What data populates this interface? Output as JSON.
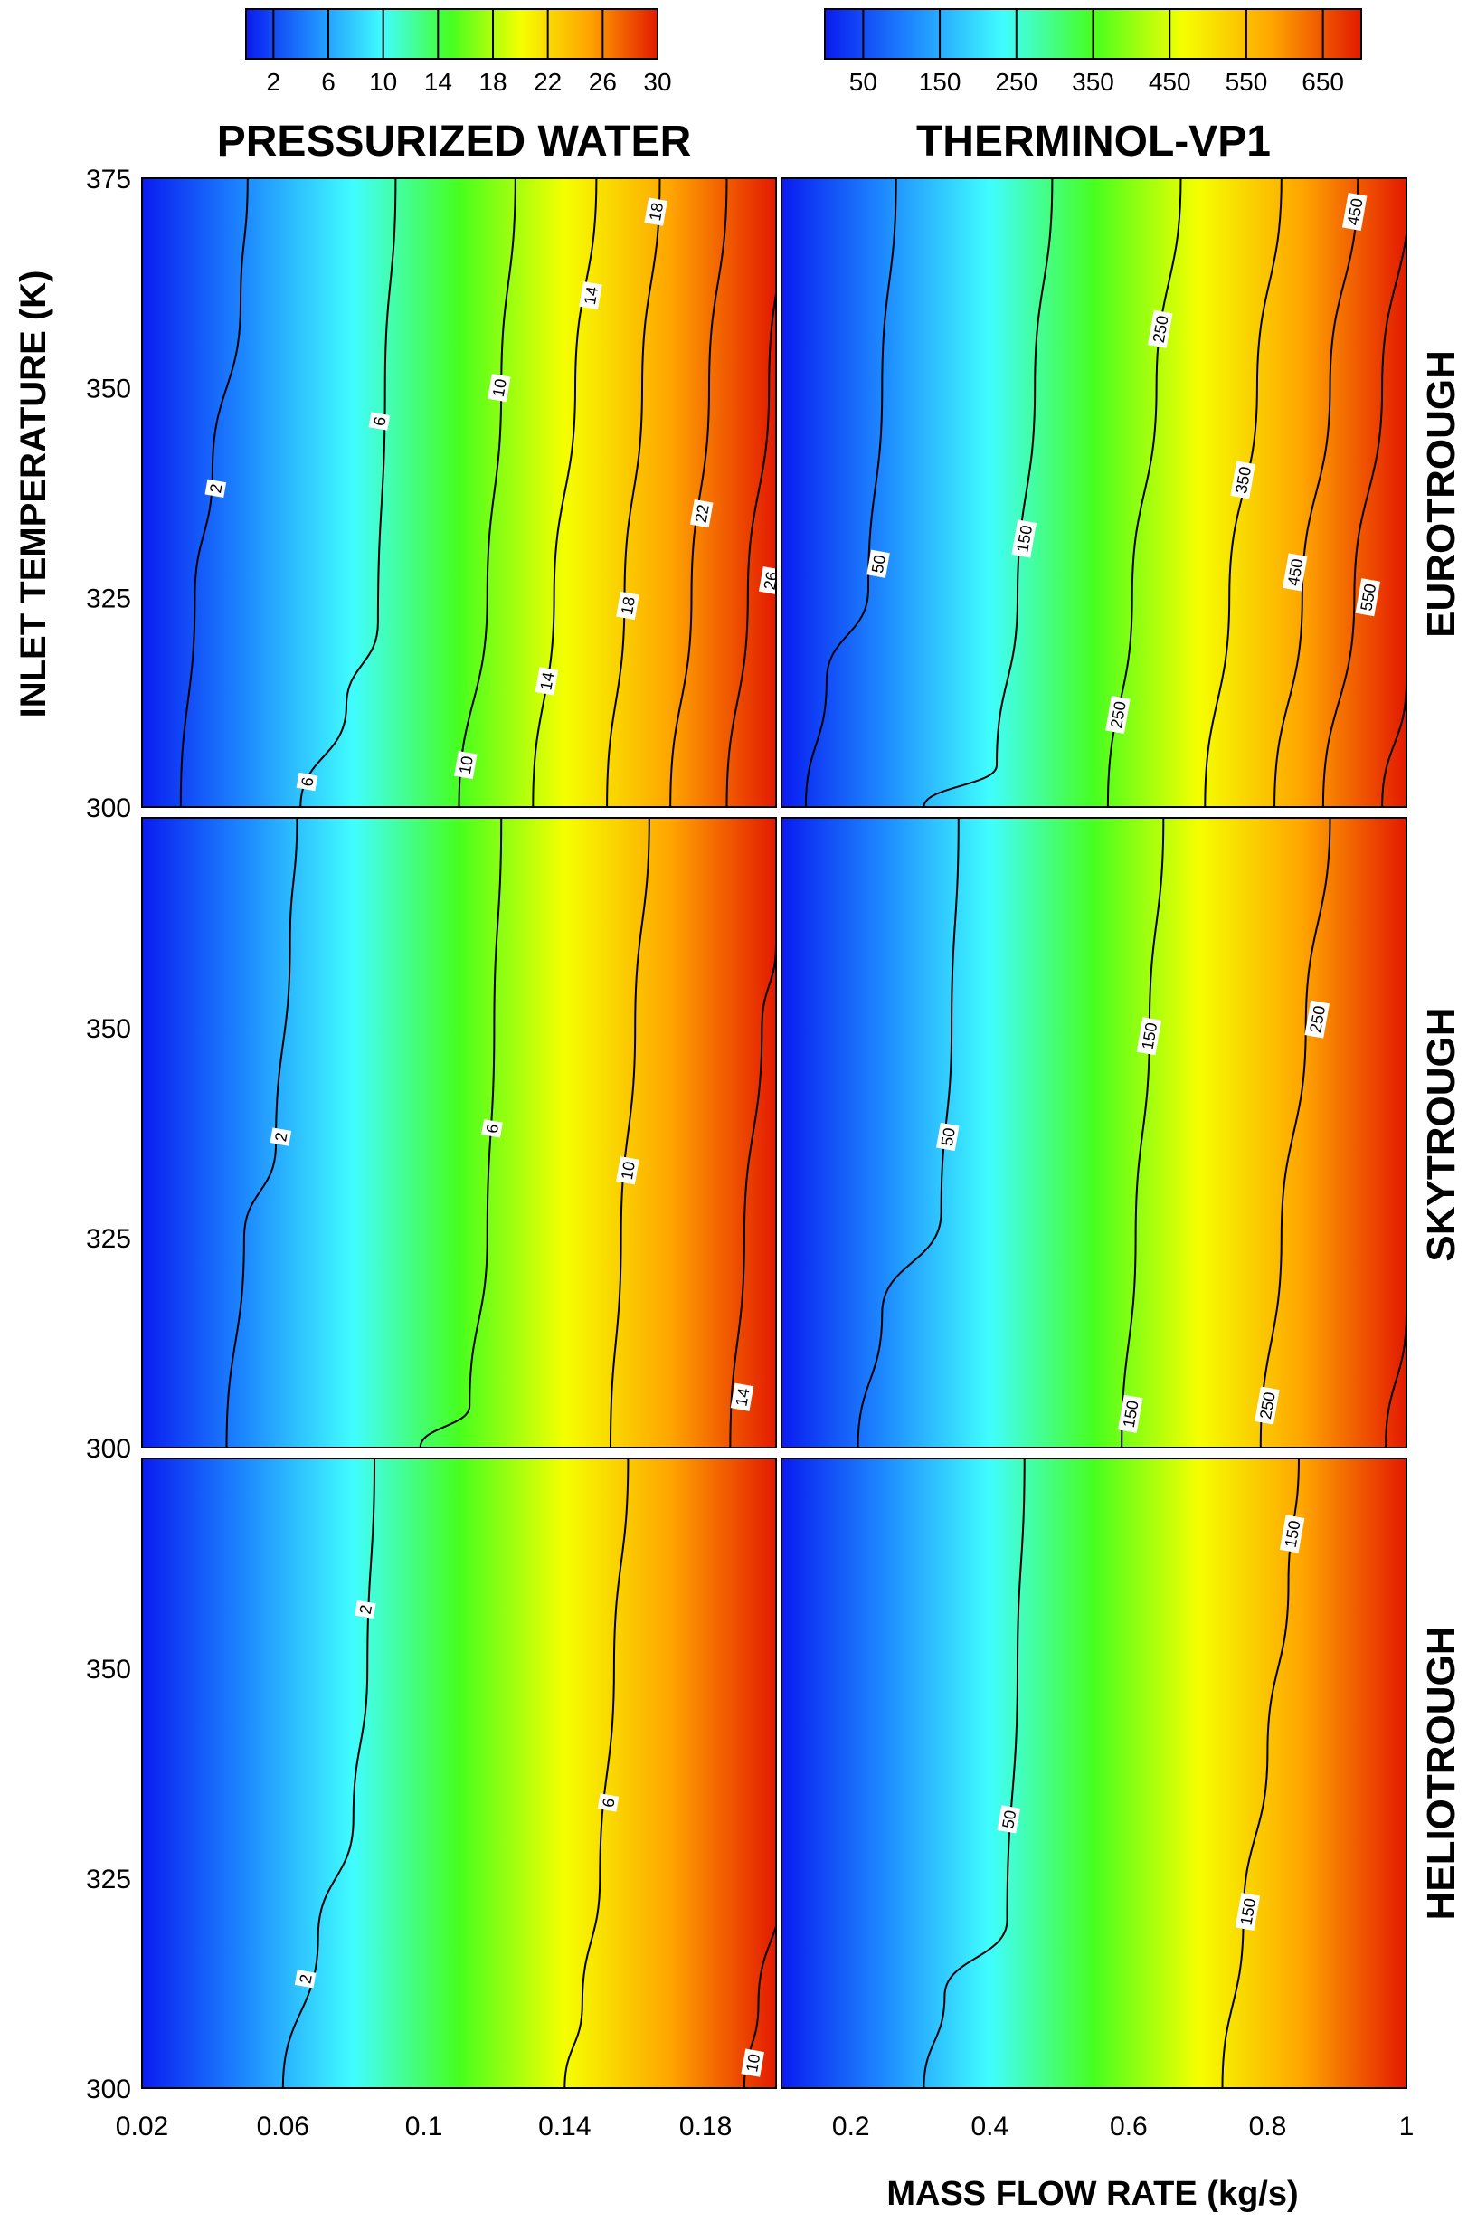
{
  "colors": {
    "colormap": [
      "#0a1cf0",
      "#1e8cff",
      "#40fdff",
      "#47ff1e",
      "#f5ff00",
      "#ffa500",
      "#e31a00"
    ],
    "contour": "#000000",
    "axis": "#000000"
  },
  "chart_data": {
    "type": "heatmap",
    "columns": [
      {
        "title": "PRESSURIZED WATER",
        "xlim": [
          0.02,
          0.2
        ],
        "xticks": [
          0.02,
          0.06,
          0.1,
          0.14,
          0.18
        ],
        "xtick_labels": [
          "0.02",
          "0.06",
          "0.1",
          "0.14",
          "0.18"
        ],
        "colorbar": {
          "range": [
            0,
            30
          ],
          "ticks": [
            2,
            6,
            10,
            14,
            18,
            22,
            26,
            30
          ],
          "labels": [
            "2",
            "6",
            "10",
            "14",
            "18",
            "22",
            "26",
            "30"
          ]
        }
      },
      {
        "title": "THERMINOL-VP1",
        "xlim": [
          0.1,
          1.0
        ],
        "xticks": [
          0.2,
          0.4,
          0.6,
          0.8,
          1.0
        ],
        "xtick_labels": [
          "0.2",
          "0.4",
          "0.6",
          "0.8",
          "1"
        ],
        "colorbar": {
          "range": [
            0,
            700
          ],
          "ticks": [
            50,
            150,
            250,
            350,
            450,
            550,
            650
          ],
          "labels": [
            "50",
            "150",
            "250",
            "350",
            "450",
            "550",
            "650"
          ]
        }
      }
    ],
    "rows": [
      "EUROTROUGH",
      "SKYTROUGH",
      "HELIOTROUGH"
    ],
    "ylabel": "INLET TEMPERATURE (K)",
    "xlabel": "MASS FLOW RATE (kg/s)",
    "ylim": [
      300,
      375
    ],
    "yticks": [
      300,
      325,
      350,
      375
    ],
    "ytick_labels": [
      "300",
      "325",
      "350",
      "375"
    ],
    "panels": [
      {
        "row": "EUROTROUGH",
        "fluid": "PRESSURIZED WATER",
        "contours": [
          {
            "level": "2",
            "points": [
              [
                0.031,
                300
              ],
              [
                0.035,
                325
              ],
              [
                0.04,
                340
              ],
              [
                0.048,
                360
              ],
              [
                0.05,
                375
              ]
            ],
            "label_at": [
              0.041,
              338
            ]
          },
          {
            "level": "6",
            "points": [
              [
                0.065,
                300
              ],
              [
                0.078,
                312
              ],
              [
                0.087,
                322
              ],
              [
                0.089,
                350
              ],
              [
                0.092,
                375
              ]
            ],
            "label_at": [
              0.067,
              303
            ]
          },
          {
            "level": "6",
            "points": [],
            "label_at": [
              0.0875,
              346
            ]
          },
          {
            "level": "10",
            "points": [
              [
                0.11,
                300
              ],
              [
                0.118,
                325
              ],
              [
                0.122,
                350
              ],
              [
                0.126,
                375
              ]
            ],
            "label_at": [
              0.112,
              305
            ]
          },
          {
            "level": "10",
            "points": [],
            "label_at": [
              0.1215,
              350
            ]
          },
          {
            "level": "14",
            "points": [
              [
                0.131,
                300
              ],
              [
                0.137,
                325
              ],
              [
                0.143,
                350
              ],
              [
                0.149,
                375
              ]
            ],
            "label_at": [
              0.135,
              315
            ]
          },
          {
            "level": "14",
            "points": [],
            "label_at": [
              0.1475,
              361
            ]
          },
          {
            "level": "18",
            "points": [
              [
                0.152,
                300
              ],
              [
                0.157,
                325
              ],
              [
                0.162,
                350
              ],
              [
                0.167,
                375
              ]
            ],
            "label_at": [
              0.158,
              324
            ]
          },
          {
            "level": "18",
            "points": [],
            "label_at": [
              0.166,
              371
            ]
          },
          {
            "level": "22",
            "points": [
              [
                0.17,
                300
              ],
              [
                0.176,
                325
              ],
              [
                0.181,
                350
              ],
              [
                0.186,
                375
              ]
            ],
            "label_at": [
              0.179,
              335
            ]
          },
          {
            "level": "26",
            "points": [
              [
                0.186,
                300
              ],
              [
                0.192,
                325
              ],
              [
                0.198,
                350
              ],
              [
                0.203,
                375
              ]
            ],
            "label_at": [
              0.1985,
              327
            ]
          }
        ]
      },
      {
        "row": "EUROTROUGH",
        "fluid": "THERMINOL-VP1",
        "contours": [
          {
            "level": "50",
            "points": [
              [
                0.135,
                300
              ],
              [
                0.165,
                315
              ],
              [
                0.225,
                326
              ],
              [
                0.245,
                350
              ],
              [
                0.265,
                375
              ]
            ],
            "label_at": [
              0.24,
              329
            ]
          },
          {
            "level": "150",
            "points": [
              [
                0.305,
                300
              ],
              [
                0.41,
                305
              ],
              [
                0.44,
                325
              ],
              [
                0.465,
                350
              ],
              [
                0.49,
                375
              ]
            ],
            "label_at": [
              0.45,
              332
            ]
          },
          {
            "level": "250",
            "points": [
              [
                0.57,
                300
              ],
              [
                0.605,
                325
              ],
              [
                0.64,
                350
              ],
              [
                0.675,
                375
              ]
            ],
            "label_at": [
              0.585,
              311
            ]
          },
          {
            "level": "250",
            "points": [],
            "label_at": [
              0.646,
              357
            ]
          },
          {
            "level": "350",
            "points": [
              [
                0.71,
                300
              ],
              [
                0.745,
                325
              ],
              [
                0.785,
                350
              ],
              [
                0.82,
                375
              ]
            ],
            "label_at": [
              0.765,
              339
            ]
          },
          {
            "level": "450",
            "points": [
              [
                0.81,
                300
              ],
              [
                0.85,
                325
              ],
              [
                0.89,
                350
              ],
              [
                0.93,
                375
              ]
            ],
            "label_at": [
              0.84,
              328
            ]
          },
          {
            "level": "450",
            "points": [],
            "label_at": [
              0.926,
              371
            ]
          },
          {
            "level": "550",
            "points": [
              [
                0.88,
                300
              ],
              [
                0.925,
                325
              ],
              [
                0.965,
                350
              ],
              [
                1.005,
                375
              ]
            ],
            "label_at": [
              0.945,
              325
            ]
          },
          {
            "level": "650",
            "points": [
              [
                0.965,
                300
              ],
              [
                1.0,
                315
              ]
            ],
            "label_at": null
          }
        ]
      },
      {
        "row": "SKYTROUGH",
        "fluid": "PRESSURIZED WATER",
        "contours": [
          {
            "level": "2",
            "points": [
              [
                0.044,
                300
              ],
              [
                0.049,
                325
              ],
              [
                0.058,
                336
              ],
              [
                0.062,
                360
              ],
              [
                0.064,
                375
              ]
            ],
            "label_at": [
              0.0595,
              337
            ]
          },
          {
            "level": "6",
            "points": [
              [
                0.099,
                300
              ],
              [
                0.113,
                305
              ],
              [
                0.118,
                325
              ],
              [
                0.12,
                350
              ],
              [
                0.122,
                375
              ]
            ],
            "label_at": [
              0.1195,
              338
            ]
          },
          {
            "level": "10",
            "points": [
              [
                0.153,
                300
              ],
              [
                0.156,
                325
              ],
              [
                0.16,
                350
              ],
              [
                0.164,
                375
              ]
            ],
            "label_at": [
              0.158,
              333
            ]
          },
          {
            "level": "14",
            "points": [
              [
                0.187,
                300
              ],
              [
                0.191,
                325
              ],
              [
                0.196,
                350
              ],
              [
                0.2,
                360
              ]
            ],
            "label_at": [
              0.1905,
              306
            ]
          }
        ]
      },
      {
        "row": "SKYTROUGH",
        "fluid": "THERMINOL-VP1",
        "contours": [
          {
            "level": "50",
            "points": [
              [
                0.21,
                300
              ],
              [
                0.245,
                316
              ],
              [
                0.33,
                328
              ],
              [
                0.345,
                350
              ],
              [
                0.355,
                375
              ]
            ],
            "label_at": [
              0.34,
              337
            ]
          },
          {
            "level": "150",
            "points": [
              [
                0.59,
                300
              ],
              [
                0.61,
                325
              ],
              [
                0.63,
                350
              ],
              [
                0.65,
                375
              ]
            ],
            "label_at": [
              0.603,
              304
            ]
          },
          {
            "level": "150",
            "points": [],
            "label_at": [
              0.63,
              349
            ]
          },
          {
            "level": "250",
            "points": [
              [
                0.79,
                300
              ],
              [
                0.82,
                325
              ],
              [
                0.855,
                350
              ],
              [
                0.89,
                375
              ]
            ],
            "label_at": [
              0.8,
              305
            ]
          },
          {
            "level": "250",
            "points": [],
            "label_at": [
              0.872,
              351
            ]
          },
          {
            "level": "350",
            "points": [
              [
                0.97,
                300
              ],
              [
                1.0,
                316
              ]
            ],
            "label_at": null
          }
        ]
      },
      {
        "row": "HELIOTROUGH",
        "fluid": "PRESSURIZED WATER",
        "contours": [
          {
            "level": "2",
            "points": [
              [
                0.06,
                300
              ],
              [
                0.07,
                318
              ],
              [
                0.08,
                332
              ],
              [
                0.084,
                350
              ],
              [
                0.086,
                375
              ]
            ],
            "label_at": [
              0.0665,
              313
            ]
          },
          {
            "level": "2",
            "points": [],
            "label_at": [
              0.0835,
              357
            ]
          },
          {
            "level": "6",
            "points": [
              [
                0.14,
                300
              ],
              [
                0.145,
                310
              ],
              [
                0.15,
                325
              ],
              [
                0.154,
                350
              ],
              [
                0.158,
                375
              ]
            ],
            "label_at": [
              0.1525,
              334
            ]
          },
          {
            "level": "10",
            "points": [
              [
                0.191,
                300
              ],
              [
                0.195,
                310
              ],
              [
                0.202,
                325
              ]
            ],
            "label_at": [
              0.1935,
              303
            ]
          }
        ]
      },
      {
        "row": "HELIOTROUGH",
        "fluid": "THERMINOL-VP1",
        "contours": [
          {
            "level": "50",
            "points": [
              [
                0.305,
                300
              ],
              [
                0.335,
                311
              ],
              [
                0.425,
                320
              ],
              [
                0.44,
                350
              ],
              [
                0.45,
                375
              ]
            ],
            "label_at": [
              0.428,
              332
            ]
          },
          {
            "level": "150",
            "points": [
              [
                0.735,
                300
              ],
              [
                0.765,
                320
              ],
              [
                0.8,
                340
              ],
              [
                0.83,
                360
              ],
              [
                0.845,
                375
              ]
            ],
            "label_at": [
              0.772,
              321
            ]
          },
          {
            "level": "150",
            "points": [],
            "label_at": [
              0.836,
              366
            ]
          }
        ]
      }
    ]
  }
}
